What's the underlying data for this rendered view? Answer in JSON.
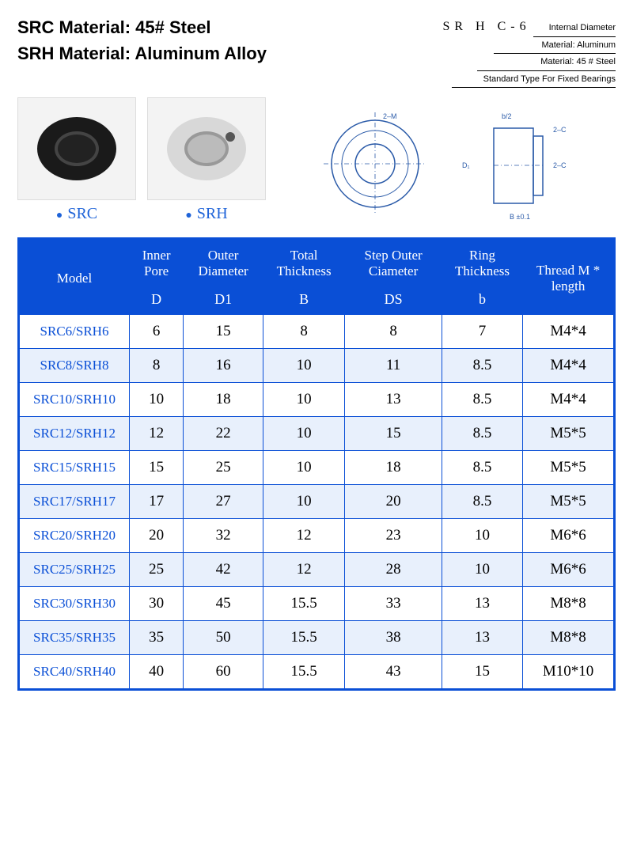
{
  "materials": {
    "src": "SRC Material: 45# Steel",
    "srh": "SRH Material: Aluminum Alloy"
  },
  "codeDiagram": {
    "code": "SR H C-6",
    "lines": [
      "Internal Diameter",
      "Material: Aluminum",
      "Material: 45 # Steel",
      "Standard Type For Fixed Bearings"
    ]
  },
  "productLabels": {
    "src": "SRC",
    "srh": "SRH"
  },
  "table": {
    "headers": {
      "model": "Model",
      "inner": "Inner Pore",
      "outer": "Outer Diameter",
      "total": "Total Thickness",
      "step": "Step Outer Ciameter",
      "ring": "Ring Thickness",
      "thread": "Thread M * length"
    },
    "symbols": {
      "inner": "D",
      "outer": "D1",
      "total": "B",
      "step": "DS",
      "ring": "b"
    },
    "rows": [
      {
        "model": "SRC6/SRH6",
        "d": "6",
        "d1": "15",
        "b": "8",
        "ds": "8",
        "rb": "7",
        "t": "M4*4"
      },
      {
        "model": "SRC8/SRH8",
        "d": "8",
        "d1": "16",
        "b": "10",
        "ds": "11",
        "rb": "8.5",
        "t": "M4*4"
      },
      {
        "model": "SRC10/SRH10",
        "d": "10",
        "d1": "18",
        "b": "10",
        "ds": "13",
        "rb": "8.5",
        "t": "M4*4"
      },
      {
        "model": "SRC12/SRH12",
        "d": "12",
        "d1": "22",
        "b": "10",
        "ds": "15",
        "rb": "8.5",
        "t": "M5*5"
      },
      {
        "model": "SRC15/SRH15",
        "d": "15",
        "d1": "25",
        "b": "10",
        "ds": "18",
        "rb": "8.5",
        "t": "M5*5"
      },
      {
        "model": "SRC17/SRH17",
        "d": "17",
        "d1": "27",
        "b": "10",
        "ds": "20",
        "rb": "8.5",
        "t": "M5*5"
      },
      {
        "model": "SRC20/SRH20",
        "d": "20",
        "d1": "32",
        "b": "12",
        "ds": "23",
        "rb": "10",
        "t": "M6*6"
      },
      {
        "model": "SRC25/SRH25",
        "d": "25",
        "d1": "42",
        "b": "12",
        "ds": "28",
        "rb": "10",
        "t": "M6*6"
      },
      {
        "model": "SRC30/SRH30",
        "d": "30",
        "d1": "45",
        "b": "15.5",
        "ds": "33",
        "rb": "13",
        "t": "M8*8"
      },
      {
        "model": "SRC35/SRH35",
        "d": "35",
        "d1": "50",
        "b": "15.5",
        "ds": "38",
        "rb": "13",
        "t": "M8*8"
      },
      {
        "model": "SRC40/SRH40",
        "d": "40",
        "d1": "60",
        "b": "15.5",
        "ds": "43",
        "rb": "15",
        "t": "M10*10"
      }
    ],
    "colors": {
      "border": "#0a4fd6",
      "headerBg": "#0a4fd6",
      "altRow": "#e8f0fc",
      "modelText": "#0a4fd6"
    }
  }
}
